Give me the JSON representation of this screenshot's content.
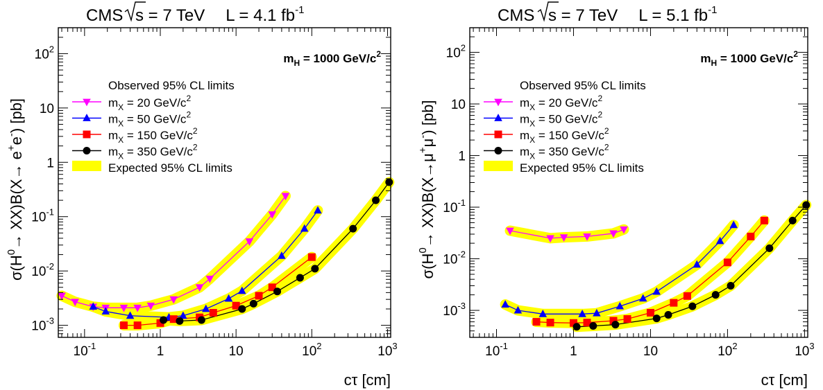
{
  "chart_data": [
    {
      "type": "line",
      "title": "CMS   √s = 7 TeV   L = 4.1 fb⁻¹",
      "title_parts": {
        "experiment": "CMS",
        "energy": "s = 7 TeV",
        "lumi": "L = 4.1 fb",
        "lumi_exp": "-1"
      },
      "annotation": {
        "base": "m",
        "sub": "H",
        "text": " = 1000 GeV/c",
        "sup": "2"
      },
      "xlabel": "cτ [cm]",
      "ylabel": {
        "prefix": "σ(H",
        "h_sup": "0",
        "mid": "→ XX)B(X→ e",
        "l1": "+",
        "mid2": "e",
        "l2": "-",
        "suffix": ") [pb]"
      },
      "x_scale": "log",
      "y_scale": "log",
      "xlim": [
        0.045,
        1100
      ],
      "ylim": [
        0.0006,
        300
      ],
      "x_ticks": [
        {
          "v": 0.1,
          "b": "10",
          "e": "-1"
        },
        {
          "v": 1,
          "b": "1",
          "e": ""
        },
        {
          "v": 10,
          "b": "10",
          "e": ""
        },
        {
          "v": 100,
          "b": "10",
          "e": "2"
        },
        {
          "v": 1000,
          "b": "10",
          "e": "3"
        }
      ],
      "y_ticks": [
        {
          "v": 0.001,
          "b": "10",
          "e": "-3"
        },
        {
          "v": 0.01,
          "b": "10",
          "e": "-2"
        },
        {
          "v": 0.1,
          "b": "10",
          "e": "-1"
        },
        {
          "v": 1,
          "b": "1",
          "e": ""
        },
        {
          "v": 10,
          "b": "10",
          "e": ""
        },
        {
          "v": 100,
          "b": "10",
          "e": "2"
        }
      ],
      "legend_placement": "upper-left",
      "legend_title": "Observed 95% CL limits",
      "expected_label": "Expected 95% CL limits",
      "series": [
        {
          "name": "m_X = 20 GeV/c²",
          "label": {
            "m": "m",
            "sub": "X",
            "text": " = 20 GeV/c",
            "sup": "2"
          },
          "color": "#ff00ff",
          "marker": "triangle-down",
          "x": [
            0.05,
            0.075,
            0.13,
            0.19,
            0.33,
            0.5,
            0.75,
            1.5,
            3.3,
            4.5,
            15,
            30,
            45
          ],
          "y": [
            0.0035,
            0.0027,
            0.0022,
            0.0021,
            0.0021,
            0.0021,
            0.0023,
            0.003,
            0.005,
            0.0072,
            0.035,
            0.11,
            0.24
          ]
        },
        {
          "name": "m_X = 50 GeV/c²",
          "label": {
            "m": "m",
            "sub": "X",
            "text": " = 50 GeV/c",
            "sup": "2"
          },
          "color": "#0000ff",
          "marker": "triangle-up",
          "x": [
            0.13,
            0.19,
            0.4,
            1.3,
            2,
            4,
            8,
            12,
            40,
            80,
            120
          ],
          "y": [
            0.0022,
            0.0018,
            0.0015,
            0.0014,
            0.0015,
            0.002,
            0.0031,
            0.0043,
            0.019,
            0.06,
            0.13
          ]
        },
        {
          "name": "m_X = 150 GeV/c²",
          "label": {
            "m": "m",
            "sub": "X",
            "text": " = 150 GeV/c",
            "sup": "2"
          },
          "color": "#ff0000",
          "marker": "square",
          "x": [
            0.33,
            0.5,
            1,
            1.5,
            3.3,
            5,
            10,
            20,
            30,
            100
          ],
          "y": [
            0.001,
            0.001,
            0.0011,
            0.0013,
            0.0014,
            0.0017,
            0.0023,
            0.0035,
            0.005,
            0.018
          ]
        },
        {
          "name": "m_X = 350 GeV/c²",
          "label": {
            "m": "m",
            "sub": "X",
            "text": " = 350 GeV/c",
            "sup": "2"
          },
          "color": "#000000",
          "marker": "circle",
          "x": [
            1.1,
            1.8,
            3.5,
            12,
            17,
            35,
            70,
            110,
            350,
            700,
            1050
          ],
          "y": [
            0.00125,
            0.0012,
            0.00125,
            0.002,
            0.0025,
            0.0042,
            0.0075,
            0.011,
            0.06,
            0.2,
            0.43
          ]
        }
      ]
    },
    {
      "type": "line",
      "title": "CMS   √s = 7 TeV   L = 5.1 fb⁻¹",
      "title_parts": {
        "experiment": "CMS",
        "energy": "s = 7 TeV",
        "lumi": "L = 5.1 fb",
        "lumi_exp": "-1"
      },
      "annotation": {
        "base": "m",
        "sub": "H",
        "text": " = 1000 GeV/c",
        "sup": "2"
      },
      "xlabel": "cτ [cm]",
      "ylabel": {
        "prefix": "σ(H",
        "h_sup": "0",
        "mid": "→ XX)B(X→μ",
        "l1": "+",
        "mid2": "μ",
        "l2": "-",
        "suffix": ") [pb]"
      },
      "x_scale": "log",
      "y_scale": "log",
      "xlim": [
        0.045,
        1100
      ],
      "ylim": [
        0.0003,
        300
      ],
      "x_ticks": [
        {
          "v": 0.1,
          "b": "10",
          "e": "-1"
        },
        {
          "v": 1,
          "b": "1",
          "e": ""
        },
        {
          "v": 10,
          "b": "10",
          "e": ""
        },
        {
          "v": 100,
          "b": "10",
          "e": "2"
        },
        {
          "v": 1000,
          "b": "10",
          "e": "3"
        }
      ],
      "y_ticks": [
        {
          "v": 0.001,
          "b": "10",
          "e": "-3"
        },
        {
          "v": 0.01,
          "b": "10",
          "e": "-2"
        },
        {
          "v": 0.1,
          "b": "10",
          "e": "-1"
        },
        {
          "v": 1,
          "b": "1",
          "e": ""
        },
        {
          "v": 10,
          "b": "10",
          "e": ""
        },
        {
          "v": 100,
          "b": "10",
          "e": "2"
        }
      ],
      "legend_placement": "upper-left",
      "legend_title": "Observed 95% CL limits",
      "expected_label": "Expected 95% CL limits",
      "series": [
        {
          "name": "m_X = 20 GeV/c²",
          "label": {
            "m": "m",
            "sub": "X",
            "text": " = 20 GeV/c",
            "sup": "2"
          },
          "color": "#ff00ff",
          "marker": "triangle-down",
          "x": [
            0.15,
            0.5,
            0.75,
            1.5,
            3.3,
            4.5
          ],
          "y": [
            0.035,
            0.025,
            0.026,
            0.027,
            0.031,
            0.037
          ]
        },
        {
          "name": "m_X = 50 GeV/c²",
          "label": {
            "m": "m",
            "sub": "X",
            "text": " = 50 GeV/c",
            "sup": "2"
          },
          "color": "#0000ff",
          "marker": "triangle-up",
          "x": [
            0.13,
            0.19,
            0.4,
            1.3,
            2,
            4,
            8,
            12,
            40,
            80,
            120
          ],
          "y": [
            0.0013,
            0.001,
            0.00085,
            0.00085,
            0.00088,
            0.0012,
            0.0017,
            0.0023,
            0.0077,
            0.022,
            0.045
          ]
        },
        {
          "name": "m_X = 150 GeV/c²",
          "label": {
            "m": "m",
            "sub": "X",
            "text": " = 150 GeV/c",
            "sup": "2"
          },
          "color": "#ff0000",
          "marker": "square",
          "x": [
            0.33,
            0.5,
            1,
            1.5,
            3.3,
            5,
            10,
            20,
            30,
            100,
            200,
            300
          ],
          "y": [
            0.0006,
            0.00058,
            0.00057,
            0.00058,
            0.00063,
            0.00068,
            0.0009,
            0.0014,
            0.0019,
            0.0085,
            0.027,
            0.055
          ]
        },
        {
          "name": "m_X = 350 GeV/c²",
          "label": {
            "m": "m",
            "sub": "X",
            "text": " = 350 GeV/c",
            "sup": "2"
          },
          "color": "#000000",
          "marker": "circle",
          "x": [
            1.1,
            1.8,
            3.5,
            12,
            17,
            35,
            70,
            110,
            350,
            700,
            1050
          ],
          "y": [
            0.00048,
            0.0005,
            0.00053,
            0.0007,
            0.00082,
            0.0012,
            0.002,
            0.003,
            0.016,
            0.055,
            0.11
          ]
        }
      ]
    }
  ]
}
